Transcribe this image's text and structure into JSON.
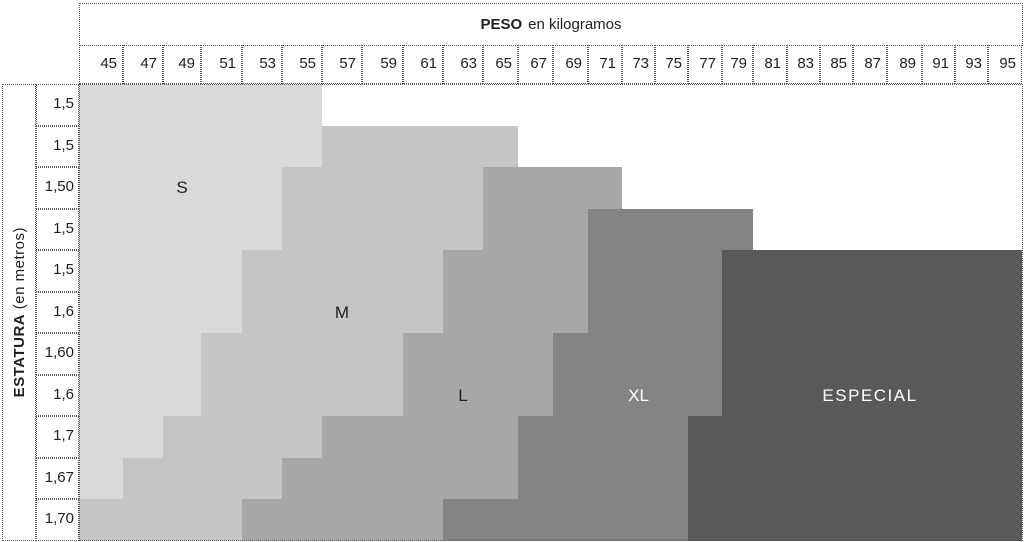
{
  "chart_data": {
    "type": "heatmap",
    "title": "PESO en kilogramos",
    "x": {
      "title_bold": "PESO",
      "title_rest": "en kilogramos",
      "ticks": [
        "45",
        "47",
        "49",
        "51",
        "53",
        "55",
        "57",
        "59",
        "61",
        "63",
        "65",
        "67",
        "69",
        "71",
        "73",
        "75",
        "77",
        "79",
        "81",
        "83",
        "85",
        "87",
        "89",
        "91",
        "93",
        "95"
      ]
    },
    "y": {
      "title_bold": "ESTATURA",
      "title_rest": "(en metros)",
      "ticks": [
        "1,5",
        "1,5",
        "1,50",
        "1,5",
        "1,5",
        "1,6",
        "1,60",
        "1,6",
        "1,7",
        "1,67",
        "1,70"
      ]
    },
    "legend_position": "labels-inside-zones",
    "grid": false,
    "zones": [
      {
        "label": "S",
        "fill": "#d9d9d9",
        "text_color": "#1f1f1f",
        "label_anchor": {
          "row": 2,
          "weight": 49
        },
        "rows": [
          {
            "row": 0,
            "from": 45,
            "to": 55
          },
          {
            "row": 1,
            "from": 45,
            "to": 55
          },
          {
            "row": 2,
            "from": 45,
            "to": 53
          },
          {
            "row": 3,
            "from": 45,
            "to": 53
          },
          {
            "row": 4,
            "from": 45,
            "to": 51
          },
          {
            "row": 5,
            "from": 45,
            "to": 51
          },
          {
            "row": 6,
            "from": 45,
            "to": 49
          },
          {
            "row": 7,
            "from": 45,
            "to": 49
          },
          {
            "row": 8,
            "from": 45,
            "to": 47
          },
          {
            "row": 9,
            "from": 45,
            "to": 45
          }
        ]
      },
      {
        "label": "M",
        "fill": "#c5c5c5",
        "text_color": "#1f1f1f",
        "label_anchor": {
          "row": 5,
          "weight": 57
        },
        "rows": [
          {
            "row": 1,
            "from": 57,
            "to": 65
          },
          {
            "row": 2,
            "from": 55,
            "to": 63
          },
          {
            "row": 3,
            "from": 55,
            "to": 63
          },
          {
            "row": 4,
            "from": 53,
            "to": 61
          },
          {
            "row": 5,
            "from": 53,
            "to": 61
          },
          {
            "row": 6,
            "from": 51,
            "to": 59
          },
          {
            "row": 7,
            "from": 51,
            "to": 59
          },
          {
            "row": 8,
            "from": 49,
            "to": 55
          },
          {
            "row": 9,
            "from": 47,
            "to": 53
          },
          {
            "row": 10,
            "from": 45,
            "to": 51
          }
        ]
      },
      {
        "label": "L",
        "fill": "#a7a7a7",
        "text_color": "#1f1f1f",
        "label_anchor": {
          "row": 7,
          "weight": 63
        },
        "rows": [
          {
            "row": 2,
            "from": 65,
            "to": 71
          },
          {
            "row": 3,
            "from": 65,
            "to": 69
          },
          {
            "row": 4,
            "from": 63,
            "to": 69
          },
          {
            "row": 5,
            "from": 63,
            "to": 69
          },
          {
            "row": 6,
            "from": 61,
            "to": 67
          },
          {
            "row": 7,
            "from": 61,
            "to": 67
          },
          {
            "row": 8,
            "from": 57,
            "to": 65
          },
          {
            "row": 9,
            "from": 55,
            "to": 65
          },
          {
            "row": 10,
            "from": 53,
            "to": 61
          }
        ]
      },
      {
        "label": "XL",
        "fill": "#848484",
        "text_color": "#ffffff",
        "label_anchor": {
          "row": 7,
          "weight": 73
        },
        "rows": [
          {
            "row": 3,
            "from": 71,
            "to": 79
          },
          {
            "row": 4,
            "from": 71,
            "to": 77
          },
          {
            "row": 5,
            "from": 71,
            "to": 77
          },
          {
            "row": 6,
            "from": 69,
            "to": 77
          },
          {
            "row": 7,
            "from": 69,
            "to": 77
          },
          {
            "row": 8,
            "from": 67,
            "to": 75
          },
          {
            "row": 9,
            "from": 67,
            "to": 75
          },
          {
            "row": 10,
            "from": 63,
            "to": 75
          }
        ]
      },
      {
        "label": "ESPECIAL",
        "fill": "#595959",
        "text_color": "#ffffff",
        "label_anchor": {
          "row": 7,
          "weight": 87
        },
        "rows": [
          {
            "row": 4,
            "from": 79,
            "to": 95
          },
          {
            "row": 5,
            "from": 79,
            "to": 95
          },
          {
            "row": 6,
            "from": 79,
            "to": 95
          },
          {
            "row": 7,
            "from": 79,
            "to": 95
          },
          {
            "row": 8,
            "from": 77,
            "to": 95
          },
          {
            "row": 9,
            "from": 77,
            "to": 95
          },
          {
            "row": 10,
            "from": 77,
            "to": 95
          }
        ]
      }
    ]
  }
}
